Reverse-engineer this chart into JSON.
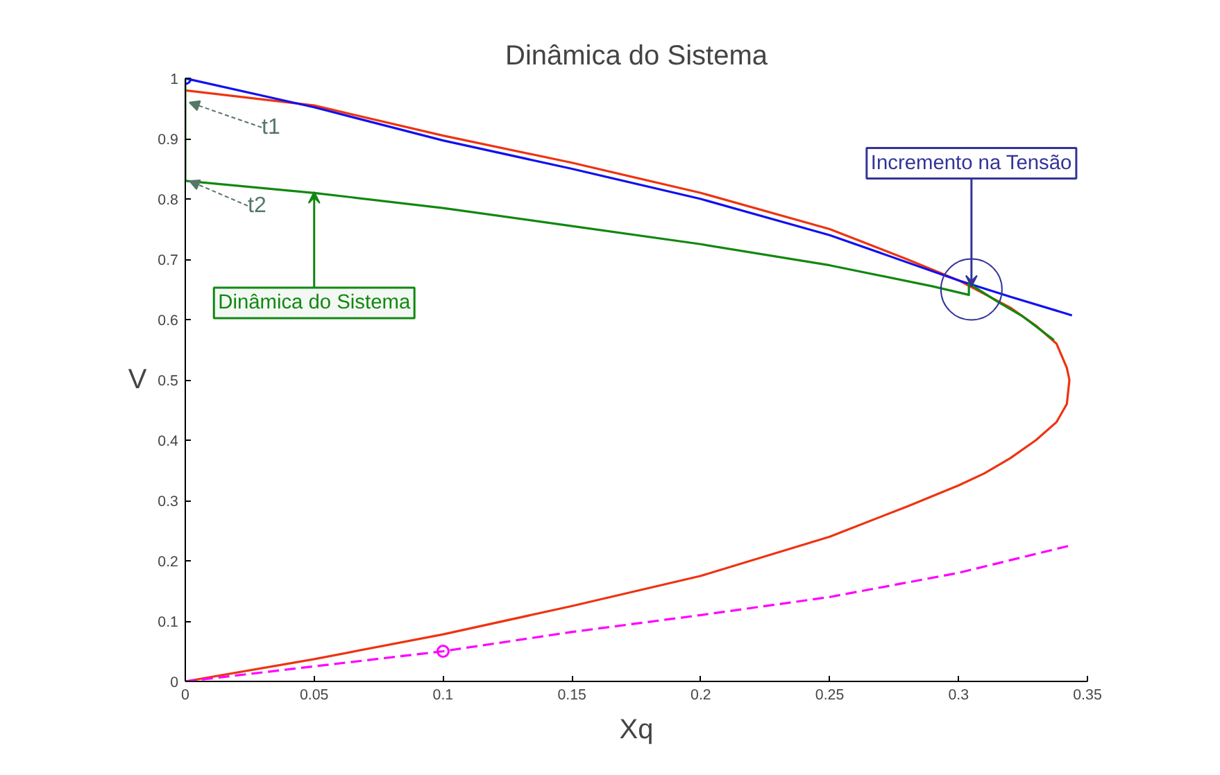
{
  "chart_data": {
    "type": "line",
    "title": "Dinâmica do Sistema",
    "xlabel": "Xq",
    "ylabel": "V",
    "xlim": [
      0,
      0.35
    ],
    "ylim": [
      0,
      1
    ],
    "xticks": [
      0,
      0.05,
      0.1,
      0.15,
      0.2,
      0.25,
      0.3,
      0.35
    ],
    "yticks": [
      0,
      0.1,
      0.2,
      0.3,
      0.4,
      0.5,
      0.6,
      0.7,
      0.8,
      0.9,
      1
    ],
    "grid": false,
    "line_style": "solid",
    "series": [
      {
        "color": "#ee3311",
        "x": [
          0,
          0.05,
          0.1,
          0.15,
          0.2,
          0.25,
          0.28,
          0.3,
          0.32,
          0.33,
          0.338,
          0.342,
          0.343,
          0.342,
          0.338,
          0.33,
          0.32,
          0.31,
          0.3,
          0.28,
          0.25,
          0.2,
          0.15,
          0.1,
          0.05,
          0
        ],
        "values": [
          0.98,
          0.955,
          0.905,
          0.86,
          0.81,
          0.75,
          0.7,
          0.665,
          0.62,
          0.59,
          0.56,
          0.52,
          0.5,
          0.46,
          0.43,
          0.4,
          0.37,
          0.345,
          0.325,
          0.29,
          0.24,
          0.175,
          0.125,
          0.078,
          0.037,
          0
        ]
      },
      {
        "color": "#1111ee",
        "x": [
          0,
          0.05,
          0.1,
          0.15,
          0.2,
          0.25,
          0.3,
          0.32,
          0.344
        ],
        "values": [
          1,
          0.952,
          0.897,
          0.85,
          0.8,
          0.74,
          0.665,
          0.638,
          0.607
        ]
      },
      {
        "color": "#118811",
        "x": [
          0,
          0,
          0.05,
          0.1,
          0.15,
          0.2,
          0.25,
          0.29,
          0.304,
          0.304,
          0.315,
          0.325,
          0.337
        ],
        "values": [
          1,
          0.83,
          0.81,
          0.785,
          0.755,
          0.725,
          0.69,
          0.655,
          0.641,
          0.66,
          0.63,
          0.605,
          0.566
        ]
      },
      {
        "color": "#ff00ff",
        "line_style": "dashed",
        "x": [
          0,
          0.05,
          0.1,
          0.15,
          0.2,
          0.25,
          0.3,
          0.343
        ],
        "values": [
          0,
          0.025,
          0.05,
          0.082,
          0.11,
          0.14,
          0.18,
          0.225
        ]
      },
      {
        "type": "scatter",
        "marker": "circle",
        "color": "#1111ee",
        "x": [
          0
        ],
        "values": [
          1
        ]
      },
      {
        "type": "scatter",
        "marker": "circle",
        "color": "#ff00ff",
        "x": [
          0.1
        ],
        "values": [
          0.05
        ]
      }
    ],
    "annotations": [
      {
        "text": "t1",
        "x": 0,
        "y": 0.96
      },
      {
        "text": "t2",
        "x": 0,
        "y": 0.83
      },
      {
        "text": "Dinâmica do Sistema",
        "x": 0.05,
        "y": 0.8
      },
      {
        "text": "Incremento na Tensão",
        "x": 0.305,
        "y": 0.65
      }
    ]
  }
}
